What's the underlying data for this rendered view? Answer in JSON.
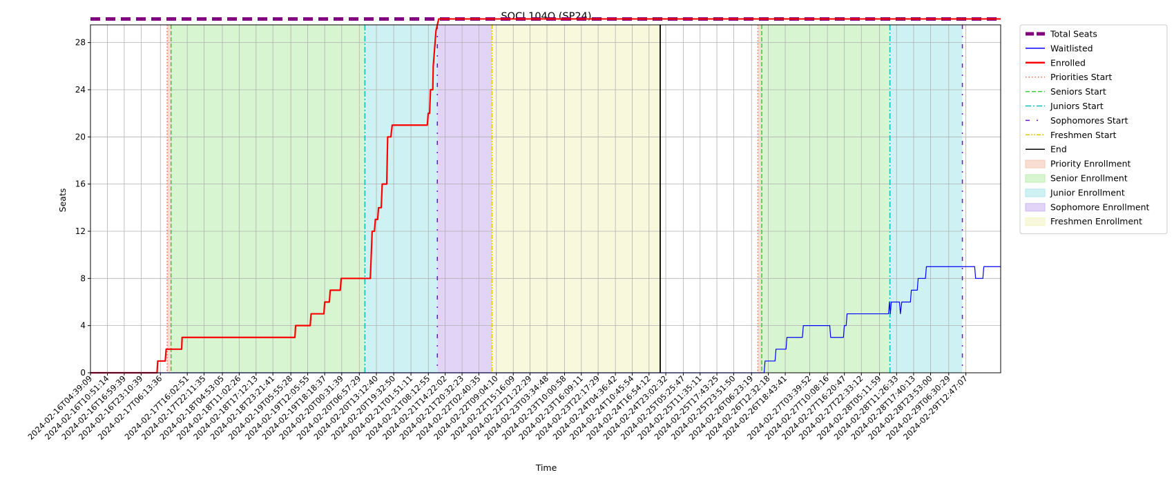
{
  "chart_data": {
    "type": "line",
    "title": "SOCI 104Q (SP24)",
    "xlabel": "Time",
    "ylabel": "Seats",
    "xlim": [
      "2024-02-16T04:39:09",
      "2024-03-01T01:30:00"
    ],
    "ylim": [
      0,
      29.5
    ],
    "yticks": [
      0,
      4,
      8,
      12,
      16,
      20,
      24,
      28
    ],
    "grid": true,
    "legend_position": "outside-right",
    "x_tick_labels": [
      "2024-02-16T04:39:09",
      "2024-02-16T10:51:14",
      "2024-02-16T16:59:39",
      "2024-02-16T23:10:39",
      "2024-02-17T06:13:36",
      "2024-02-17T16:02:51",
      "2024-02-17T22:11:35",
      "2024-02-18T04:53:05",
      "2024-02-18T11:02:26",
      "2024-02-18T17:12:13",
      "2024-02-18T23:21:41",
      "2024-02-19T05:55:28",
      "2024-02-19T12:05:55",
      "2024-02-19T18:18:37",
      "2024-02-20T00:31:39",
      "2024-02-20T06:57:29",
      "2024-02-20T13:12:40",
      "2024-02-20T19:32:50",
      "2024-02-21T01:51:11",
      "2024-02-21T08:12:55",
      "2024-02-21T14:22:02",
      "2024-02-21T20:32:23",
      "2024-02-22T02:40:35",
      "2024-02-22T09:04:10",
      "2024-02-22T15:16:09",
      "2024-02-22T21:22:29",
      "2024-02-23T03:34:48",
      "2024-02-23T10:00:58",
      "2024-02-23T16:09:11",
      "2024-02-23T22:17:29",
      "2024-02-24T04:36:42",
      "2024-02-24T10:45:54",
      "2024-02-24T16:54:12",
      "2024-02-24T23:02:32",
      "2024-02-25T05:25:47",
      "2024-02-25T11:35:11",
      "2024-02-25T17:43:25",
      "2024-02-25T23:51:50",
      "2024-02-26T06:23:19",
      "2024-02-26T12:32:18",
      "2024-02-26T18:43:41",
      "2024-02-27T03:39:52",
      "2024-02-27T10:08:16",
      "2024-02-27T16:20:47",
      "2024-02-27T22:33:12",
      "2024-02-28T05:11:59",
      "2024-02-28T11:26:33",
      "2024-02-28T17:40:13",
      "2024-02-28T23:53:00",
      "2024-02-29T06:30:29",
      "2024-02-29T12:47:07"
    ],
    "legend": [
      {
        "key": "total",
        "label": "Total Seats",
        "kind": "line",
        "color": "#800080",
        "style": "thick-dash"
      },
      {
        "key": "waitlisted",
        "label": "Waitlisted",
        "kind": "line",
        "color": "#0000ff",
        "style": "solid-thin"
      },
      {
        "key": "enrolled",
        "label": "Enrolled",
        "kind": "line",
        "color": "#ff0000",
        "style": "solid-thick"
      },
      {
        "key": "priorities_start",
        "label": "Priorities Start",
        "kind": "line",
        "color": "#ff6347",
        "style": "dotted"
      },
      {
        "key": "seniors_start",
        "label": "Seniors Start",
        "kind": "line",
        "color": "#32cd32",
        "style": "dashed"
      },
      {
        "key": "juniors_start",
        "label": "Juniors Start",
        "kind": "line",
        "color": "#00bfbf",
        "style": "dashdot"
      },
      {
        "key": "sophomores_start",
        "label": "Sophomores Start",
        "kind": "line",
        "color": "#6a0dd9",
        "style": "loose-dashdot"
      },
      {
        "key": "freshmen_start",
        "label": "Freshmen Start",
        "kind": "line",
        "color": "#e6c800",
        "style": "dashdotdot"
      },
      {
        "key": "end",
        "label": "End",
        "kind": "line",
        "color": "#000000",
        "style": "solid"
      },
      {
        "key": "priority_enrollment",
        "label": "Priority Enrollment",
        "kind": "patch",
        "color": "#f4c7b5"
      },
      {
        "key": "senior_enrollment",
        "label": "Senior Enrollment",
        "kind": "patch",
        "color": "#bdeeb0"
      },
      {
        "key": "junior_enrollment",
        "label": "Junior Enrollment",
        "kind": "patch",
        "color": "#aee7ec"
      },
      {
        "key": "sophomore_enrollment",
        "label": "Sophomore Enrollment",
        "kind": "patch",
        "color": "#cdb8f0"
      },
      {
        "key": "freshmen_enrollment",
        "label": "Freshmen Enrollment",
        "kind": "patch",
        "color": "#f4f4c4"
      }
    ],
    "periods": [
      {
        "name": "Priority Enrollment",
        "start": "2024-02-17T08:43:00",
        "end": "2024-02-17T10:08:00",
        "color": "#f4c7b5"
      },
      {
        "name": "Senior Enrollment",
        "start": "2024-02-17T10:08:00",
        "end": "2024-02-20T09:00:00",
        "color": "#bdeeb0"
      },
      {
        "name": "Junior Enrollment",
        "start": "2024-02-20T09:00:00",
        "end": "2024-02-21T11:30:00",
        "color": "#aee7ec"
      },
      {
        "name": "Sophomore Enrollment",
        "start": "2024-02-21T11:30:00",
        "end": "2024-02-22T07:30:00",
        "color": "#cdb8f0"
      },
      {
        "name": "Freshmen Enrollment",
        "start": "2024-02-22T07:30:00",
        "end": "2024-02-24T21:00:00",
        "color": "#f4f4c4"
      },
      {
        "name": "Priority Enrollment",
        "start": "2024-02-26T08:43:00",
        "end": "2024-02-26T10:08:00",
        "color": "#f4c7b5"
      },
      {
        "name": "Senior Enrollment",
        "start": "2024-02-26T10:08:00",
        "end": "2024-02-28T09:00:00",
        "color": "#bdeeb0"
      },
      {
        "name": "Junior Enrollment",
        "start": "2024-02-28T09:00:00",
        "end": "2024-02-29T11:30:00",
        "color": "#aee7ec"
      }
    ],
    "markers": [
      {
        "name": "Priorities Start",
        "time": "2024-02-17T08:43:00",
        "color": "#ff6347",
        "style": "dotted"
      },
      {
        "name": "Seniors Start",
        "time": "2024-02-17T10:08:00",
        "color": "#32cd32",
        "style": "dashed"
      },
      {
        "name": "Juniors Start",
        "time": "2024-02-20T09:00:00",
        "color": "#00bfbf",
        "style": "dashdot"
      },
      {
        "name": "Sophomores Start",
        "time": "2024-02-21T11:30:00",
        "color": "#6a0dd9",
        "style": "loose-dashdot"
      },
      {
        "name": "Freshmen Start",
        "time": "2024-02-22T07:30:00",
        "color": "#e6c800",
        "style": "dashdotdot"
      },
      {
        "name": "End",
        "time": "2024-02-24T21:00:00",
        "color": "#000000",
        "style": "solid"
      },
      {
        "name": "Priorities Start",
        "time": "2024-02-26T08:43:00",
        "color": "#ff6347",
        "style": "dotted"
      },
      {
        "name": "Seniors Start",
        "time": "2024-02-26T10:08:00",
        "color": "#32cd32",
        "style": "dashed"
      },
      {
        "name": "Juniors Start",
        "time": "2024-02-28T09:00:00",
        "color": "#00bfbf",
        "style": "dashdot"
      },
      {
        "name": "Sophomores Start",
        "time": "2024-02-29T11:30:00",
        "color": "#6a0dd9",
        "style": "loose-dashdot"
      }
    ],
    "series": [
      {
        "name": "Total Seats",
        "color": "#800080",
        "points": [
          [
            "2024-02-16T04:39:09",
            30
          ],
          [
            "2024-03-01T01:30:00",
            30
          ]
        ]
      },
      {
        "name": "Enrolled",
        "color": "#ff0000",
        "points": [
          [
            "2024-02-16T04:39:09",
            0
          ],
          [
            "2024-02-17T05:00:00",
            0
          ],
          [
            "2024-02-17T05:15:00",
            1
          ],
          [
            "2024-02-17T08:00:00",
            1
          ],
          [
            "2024-02-17T08:20:00",
            2
          ],
          [
            "2024-02-17T14:00:00",
            2
          ],
          [
            "2024-02-17T14:10:00",
            3
          ],
          [
            "2024-02-19T07:25:00",
            3
          ],
          [
            "2024-02-19T07:40:00",
            4
          ],
          [
            "2024-02-19T13:00:00",
            4
          ],
          [
            "2024-02-19T13:20:00",
            5
          ],
          [
            "2024-02-19T18:00:00",
            5
          ],
          [
            "2024-02-19T18:20:00",
            6
          ],
          [
            "2024-02-19T20:00:00",
            6
          ],
          [
            "2024-02-19T20:20:00",
            7
          ],
          [
            "2024-02-20T00:00:00",
            7
          ],
          [
            "2024-02-20T00:20:00",
            8
          ],
          [
            "2024-02-20T11:00:00",
            8
          ],
          [
            "2024-02-20T11:40:00",
            12
          ],
          [
            "2024-02-20T12:30:00",
            12
          ],
          [
            "2024-02-20T12:50:00",
            13
          ],
          [
            "2024-02-20T13:40:00",
            13
          ],
          [
            "2024-02-20T14:00:00",
            14
          ],
          [
            "2024-02-20T15:00:00",
            14
          ],
          [
            "2024-02-20T15:20:00",
            16
          ],
          [
            "2024-02-20T17:00:00",
            16
          ],
          [
            "2024-02-20T17:20:00",
            20
          ],
          [
            "2024-02-20T18:30:00",
            20
          ],
          [
            "2024-02-20T19:00:00",
            21
          ],
          [
            "2024-02-21T07:50:00",
            21
          ],
          [
            "2024-02-21T08:10:00",
            22
          ],
          [
            "2024-02-21T08:40:00",
            22
          ],
          [
            "2024-02-21T09:00:00",
            24
          ],
          [
            "2024-02-21T09:50:00",
            24
          ],
          [
            "2024-02-21T10:00:00",
            26
          ],
          [
            "2024-02-21T10:20:00",
            27
          ],
          [
            "2024-02-21T10:40:00",
            28
          ],
          [
            "2024-02-21T11:00:00",
            29
          ],
          [
            "2024-02-21T12:00:00",
            30
          ],
          [
            "2024-03-01T01:30:00",
            30
          ]
        ]
      },
      {
        "name": "Waitlisted",
        "color": "#0000ff",
        "points": [
          [
            "2024-02-16T04:39:09",
            0
          ],
          [
            "2024-02-26T11:00:00",
            0
          ],
          [
            "2024-02-26T11:20:00",
            1
          ],
          [
            "2024-02-26T15:00:00",
            1
          ],
          [
            "2024-02-26T15:20:00",
            2
          ],
          [
            "2024-02-26T19:00:00",
            2
          ],
          [
            "2024-02-26T19:20:00",
            3
          ],
          [
            "2024-02-27T01:00:00",
            3
          ],
          [
            "2024-02-27T01:20:00",
            4
          ],
          [
            "2024-02-27T11:00:00",
            4
          ],
          [
            "2024-02-27T11:20:00",
            3
          ],
          [
            "2024-02-27T16:00:00",
            3
          ],
          [
            "2024-02-27T16:20:00",
            4
          ],
          [
            "2024-02-27T17:00:00",
            4
          ],
          [
            "2024-02-27T17:20:00",
            5
          ],
          [
            "2024-02-28T08:30:00",
            5
          ],
          [
            "2024-02-28T08:50:00",
            6
          ],
          [
            "2024-02-28T09:10:00",
            5
          ],
          [
            "2024-02-28T09:30:00",
            6
          ],
          [
            "2024-02-28T12:30:00",
            6
          ],
          [
            "2024-02-28T12:50:00",
            5
          ],
          [
            "2024-02-28T13:20:00",
            6
          ],
          [
            "2024-02-28T16:30:00",
            6
          ],
          [
            "2024-02-28T16:50:00",
            7
          ],
          [
            "2024-02-28T19:00:00",
            7
          ],
          [
            "2024-02-28T19:20:00",
            8
          ],
          [
            "2024-02-28T22:00:00",
            8
          ],
          [
            "2024-02-28T22:20:00",
            9
          ],
          [
            "2024-02-29T16:00:00",
            9
          ],
          [
            "2024-02-29T16:20:00",
            8
          ],
          [
            "2024-02-29T19:00:00",
            8
          ],
          [
            "2024-02-29T19:20:00",
            9
          ],
          [
            "2024-03-01T01:30:00",
            9
          ]
        ]
      }
    ]
  }
}
